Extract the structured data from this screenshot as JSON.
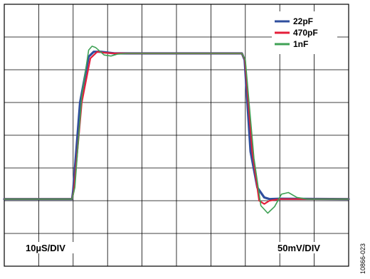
{
  "chart_data": {
    "type": "line",
    "title": "",
    "xlabel": "",
    "ylabel": "",
    "grid": true,
    "grid_divisions": {
      "x": 10,
      "y": 8
    },
    "x_scale": "10µS/DIV",
    "y_scale": "50mV/DIV",
    "xlim": [
      0,
      10
    ],
    "ylim": [
      0,
      8
    ],
    "legend_position": "top-right",
    "figure_id": "10866-023",
    "series": [
      {
        "name": "22pF",
        "color": "#2f4f9e",
        "points": [
          [
            0,
            2.05
          ],
          [
            1.97,
            2.05
          ],
          [
            2.0,
            2.3
          ],
          [
            2.2,
            5.0
          ],
          [
            2.45,
            6.4
          ],
          [
            2.6,
            6.55
          ],
          [
            2.8,
            6.55
          ],
          [
            3.2,
            6.5
          ],
          [
            6.9,
            6.5
          ],
          [
            6.98,
            6.3
          ],
          [
            7.15,
            3.5
          ],
          [
            7.35,
            2.4
          ],
          [
            7.55,
            2.1
          ],
          [
            7.7,
            2.05
          ],
          [
            8.0,
            2.06
          ],
          [
            10,
            2.05
          ]
        ]
      },
      {
        "name": "470pF",
        "color": "#e41e3a",
        "points": [
          [
            0,
            2.05
          ],
          [
            1.97,
            2.05
          ],
          [
            2.02,
            2.3
          ],
          [
            2.25,
            5.0
          ],
          [
            2.5,
            6.35
          ],
          [
            2.7,
            6.55
          ],
          [
            2.9,
            6.52
          ],
          [
            3.2,
            6.5
          ],
          [
            6.9,
            6.5
          ],
          [
            6.99,
            6.3
          ],
          [
            7.2,
            3.5
          ],
          [
            7.4,
            2.0
          ],
          [
            7.55,
            1.9
          ],
          [
            7.7,
            2.0
          ],
          [
            8.0,
            2.05
          ],
          [
            10,
            2.05
          ]
        ]
      },
      {
        "name": "1nF",
        "color": "#3fa155",
        "points": [
          [
            0,
            2.05
          ],
          [
            1.97,
            2.05
          ],
          [
            2.05,
            2.4
          ],
          [
            2.25,
            5.2
          ],
          [
            2.45,
            6.6
          ],
          [
            2.55,
            6.72
          ],
          [
            2.65,
            6.68
          ],
          [
            2.9,
            6.45
          ],
          [
            3.1,
            6.42
          ],
          [
            3.3,
            6.48
          ],
          [
            3.6,
            6.5
          ],
          [
            6.9,
            6.5
          ],
          [
            7.0,
            6.3
          ],
          [
            7.25,
            3.3
          ],
          [
            7.45,
            1.85
          ],
          [
            7.65,
            1.62
          ],
          [
            7.85,
            1.82
          ],
          [
            8.05,
            2.2
          ],
          [
            8.25,
            2.25
          ],
          [
            8.5,
            2.1
          ],
          [
            8.8,
            2.05
          ],
          [
            10,
            2.05
          ]
        ]
      }
    ]
  }
}
